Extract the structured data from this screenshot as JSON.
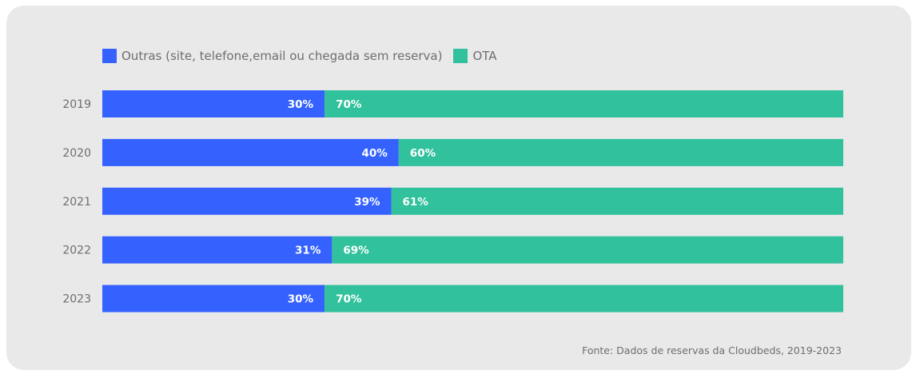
{
  "legend": {
    "outras_label": "Outras (site, telefone,email ou chegada sem reserva)",
    "ota_label": "OTA"
  },
  "source": "Fonte: Dados de reservas da Cloudbeds, 2019-2023",
  "colors": {
    "outras": "#3562ff",
    "ota": "#31c19c",
    "background": "#e9e9ea",
    "text": "#6e6e70"
  },
  "chart_data": {
    "type": "bar",
    "orientation": "horizontal",
    "stacked": true,
    "percent": true,
    "categories": [
      "2019",
      "2020",
      "2021",
      "2022",
      "2023"
    ],
    "series": [
      {
        "name": "Outras (site, telefone,email ou chegada sem reserva)",
        "values": [
          30,
          40,
          39,
          31,
          30
        ],
        "labels": [
          "30%",
          "40%",
          "39%",
          "31%",
          "30%"
        ]
      },
      {
        "name": "OTA",
        "values": [
          70,
          60,
          61,
          69,
          70
        ],
        "labels": [
          "70%",
          "60%",
          "61%",
          "69%",
          "70%"
        ]
      }
    ],
    "xlim": [
      0,
      100
    ],
    "grid": false,
    "legend_position": "top-left"
  }
}
